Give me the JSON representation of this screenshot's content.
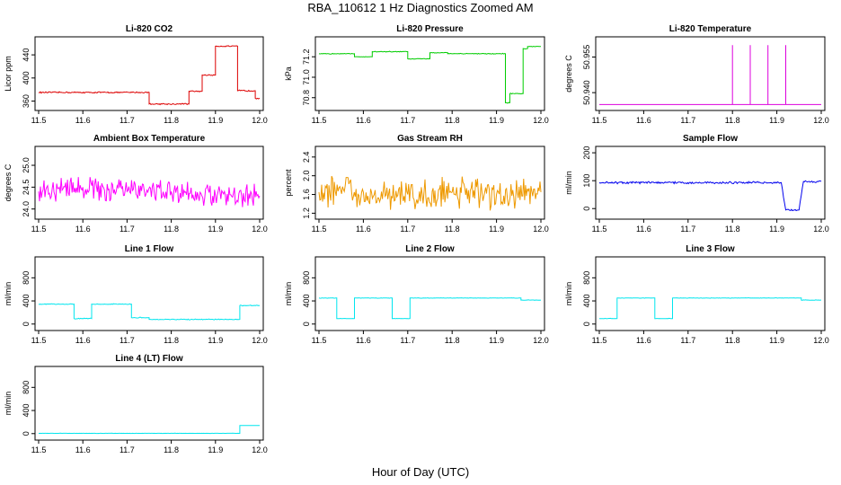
{
  "figure": {
    "title": "RBA_110612  1 Hz Diagnostics Zoomed AM",
    "xlabel": "Hour of Day (UTC)"
  },
  "chart_data": [
    {
      "type": "line",
      "title": "Li-820 CO2",
      "ylabel": "Licor ppm",
      "color": "#dd0000",
      "xlim": [
        11.5,
        12.0
      ],
      "ylim": [
        350,
        465
      ],
      "xticks": [
        11.5,
        11.6,
        11.7,
        11.8,
        11.9,
        12.0
      ],
      "yticks": [
        360,
        400,
        440
      ],
      "series": [
        {
          "x": [
            11.5,
            11.75,
            11.75,
            11.84,
            11.84,
            11.87,
            11.87,
            11.9,
            11.9,
            11.95,
            11.95,
            11.99,
            11.99,
            12.0
          ],
          "y": [
            375,
            375,
            355,
            355,
            377,
            377,
            405,
            405,
            455,
            455,
            378,
            378,
            365,
            365
          ],
          "noise": 1.2
        }
      ]
    },
    {
      "type": "line",
      "title": "Li-820 Pressure",
      "ylabel": "kPa",
      "color": "#00cc00",
      "xlim": [
        11.5,
        12.0
      ],
      "ylim": [
        70.71,
        71.36
      ],
      "xticks": [
        11.5,
        11.6,
        11.7,
        11.8,
        11.9,
        12.0
      ],
      "yticks": [
        70.8,
        71.0,
        71.2
      ],
      "series": [
        {
          "x": [
            11.5,
            11.58,
            11.58,
            11.62,
            11.62,
            11.7,
            11.7,
            11.75,
            11.75,
            11.79,
            11.79,
            11.92,
            11.92,
            11.93,
            11.93,
            11.96,
            11.96,
            11.97,
            11.97,
            12.0
          ],
          "y": [
            71.23,
            71.23,
            71.2,
            71.2,
            71.25,
            71.25,
            71.18,
            71.18,
            71.24,
            71.24,
            71.23,
            71.23,
            70.75,
            70.75,
            70.84,
            70.84,
            71.28,
            71.28,
            71.3,
            71.3
          ],
          "noise": 0.004
        }
      ]
    },
    {
      "type": "line",
      "title": "Li-820 Temperature",
      "ylabel": "degrees C",
      "color": "#dd00dd",
      "xlim": [
        11.5,
        12.0
      ],
      "ylim": [
        50.934,
        50.962
      ],
      "xticks": [
        11.5,
        11.6,
        11.7,
        11.8,
        11.9,
        12.0
      ],
      "yticks": [
        50.94,
        50.955
      ],
      "series": [
        {
          "x": [
            11.5,
            11.8,
            11.8,
            11.8,
            11.84,
            11.84,
            11.84,
            11.88,
            11.88,
            11.88,
            11.92,
            11.92,
            11.92,
            12.0
          ],
          "y": [
            50.935,
            50.935,
            50.96,
            50.935,
            50.935,
            50.96,
            50.935,
            50.935,
            50.96,
            50.935,
            50.935,
            50.96,
            50.935,
            50.935
          ],
          "noise": 0
        }
      ]
    },
    {
      "type": "line",
      "title": "Ambient Box Temperature",
      "ylabel": "degrees C",
      "color": "#ff00ff",
      "xlim": [
        11.5,
        12.0
      ],
      "ylim": [
        23.85,
        25.35
      ],
      "xticks": [
        11.5,
        11.6,
        11.7,
        11.8,
        11.9,
        12.0
      ],
      "yticks": [
        24.0,
        24.5,
        25.0
      ],
      "series": [
        {
          "x": [
            11.5,
            11.6,
            11.7,
            11.8,
            11.9,
            12.0
          ],
          "y": [
            24.4,
            24.5,
            24.4,
            24.4,
            24.3,
            24.3
          ],
          "noise": 0.28
        }
      ]
    },
    {
      "type": "line",
      "title": "Gas Stream RH",
      "ylabel": "percent",
      "color": "#ee9900",
      "xlim": [
        11.5,
        12.0
      ],
      "ylim": [
        1.15,
        2.55
      ],
      "xticks": [
        11.5,
        11.6,
        11.7,
        11.8,
        11.9,
        12.0
      ],
      "yticks": [
        1.2,
        1.6,
        2.0,
        2.4
      ],
      "series": [
        {
          "x": [
            11.5,
            11.6,
            11.7,
            11.8,
            11.9,
            12.0
          ],
          "y": [
            1.65,
            1.65,
            1.6,
            1.65,
            1.6,
            1.65
          ],
          "noise": 0.35
        }
      ]
    },
    {
      "type": "line",
      "title": "Sample Flow",
      "ylabel": "ml/min",
      "color": "#0000ee",
      "xlim": [
        11.5,
        12.0
      ],
      "ylim": [
        -25,
        210
      ],
      "xticks": [
        11.5,
        11.6,
        11.7,
        11.8,
        11.9,
        12.0
      ],
      "yticks": [
        0,
        100,
        200
      ],
      "series": [
        {
          "x": [
            11.5,
            11.91,
            11.92,
            11.95,
            11.96,
            12.0
          ],
          "y": [
            93,
            93,
            -5,
            -5,
            97,
            97
          ],
          "noise": 4
        }
      ]
    },
    {
      "type": "line",
      "title": "Line 1 Flow",
      "ylabel": "ml/min",
      "color": "#00e5ee",
      "xlim": [
        11.5,
        12.0
      ],
      "ylim": [
        -50,
        1100
      ],
      "xticks": [
        11.5,
        11.6,
        11.7,
        11.8,
        11.9,
        12.0
      ],
      "yticks": [
        0,
        400,
        800
      ],
      "series": [
        {
          "x": [
            11.5,
            11.58,
            11.58,
            11.62,
            11.62,
            11.71,
            11.71,
            11.75,
            11.75,
            11.955,
            11.955,
            12.0
          ],
          "y": [
            345,
            345,
            95,
            95,
            345,
            345,
            110,
            110,
            80,
            80,
            320,
            320
          ],
          "noise": 8
        }
      ]
    },
    {
      "type": "line",
      "title": "Line 2 Flow",
      "ylabel": "ml/min",
      "color": "#00e5ee",
      "xlim": [
        11.5,
        12.0
      ],
      "ylim": [
        -50,
        1100
      ],
      "xticks": [
        11.5,
        11.6,
        11.7,
        11.8,
        11.9,
        12.0
      ],
      "yticks": [
        0,
        400,
        800
      ],
      "series": [
        {
          "x": [
            11.5,
            11.54,
            11.54,
            11.58,
            11.58,
            11.665,
            11.665,
            11.705,
            11.705,
            11.955,
            11.955,
            12.0
          ],
          "y": [
            450,
            450,
            95,
            95,
            450,
            450,
            95,
            95,
            450,
            450,
            415,
            415
          ],
          "noise": 4
        }
      ]
    },
    {
      "type": "line",
      "title": "Line 3 Flow",
      "ylabel": "ml/min",
      "color": "#00e5ee",
      "xlim": [
        11.5,
        12.0
      ],
      "ylim": [
        -50,
        1100
      ],
      "xticks": [
        11.5,
        11.6,
        11.7,
        11.8,
        11.9,
        12.0
      ],
      "yticks": [
        0,
        400,
        800
      ],
      "series": [
        {
          "x": [
            11.5,
            11.54,
            11.54,
            11.625,
            11.625,
            11.665,
            11.665,
            11.955,
            11.955,
            12.0
          ],
          "y": [
            95,
            95,
            450,
            450,
            95,
            95,
            450,
            450,
            415,
            415
          ],
          "noise": 4
        }
      ]
    },
    {
      "type": "line",
      "title": "Line 4 (LT) Flow",
      "ylabel": "ml/min",
      "color": "#00e5ee",
      "xlim": [
        11.5,
        12.0
      ],
      "ylim": [
        -50,
        1100
      ],
      "xticks": [
        11.5,
        11.6,
        11.7,
        11.8,
        11.9,
        12.0
      ],
      "yticks": [
        0,
        400,
        800
      ],
      "series": [
        {
          "x": [
            11.5,
            11.955,
            11.955,
            12.0
          ],
          "y": [
            5,
            5,
            140,
            140
          ],
          "noise": 2
        }
      ]
    }
  ]
}
